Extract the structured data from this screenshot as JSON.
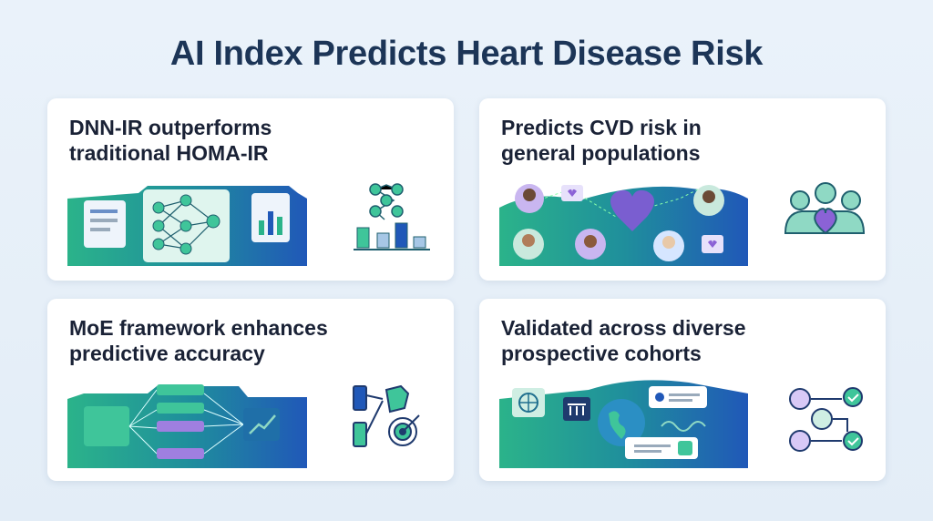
{
  "header": {
    "title": "AI Index Predicts Heart Disease Risk"
  },
  "cards": [
    {
      "lines": [
        "DNN-IR outperforms",
        "traditional HOMA-IR"
      ]
    },
    {
      "lines": [
        "Predicts CVD risk in",
        "general populations"
      ]
    },
    {
      "lines": [
        "MoE framework enhances",
        "predictive accuracy"
      ]
    },
    {
      "lines": [
        "Validated across diverse",
        "prospective cohorts"
      ]
    }
  ]
}
